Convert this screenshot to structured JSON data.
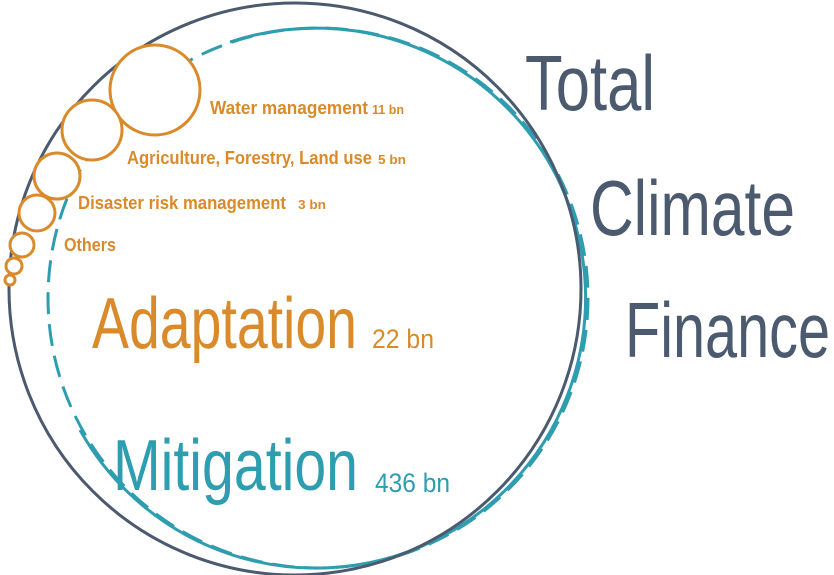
{
  "title": [
    "Total",
    "Climate",
    "Finance"
  ],
  "adaptation": {
    "label": "Adaptation",
    "amount": "22 bn",
    "items": [
      {
        "label": "Water management",
        "amount": "11 bn"
      },
      {
        "label": "Agriculture, Forestry, Land use",
        "amount": "5 bn"
      },
      {
        "label": "Disaster risk management",
        "amount": "3 bn"
      },
      {
        "label": "Others"
      }
    ]
  },
  "mitigation": {
    "label": "Mitigation",
    "amount": "436 bn"
  }
}
